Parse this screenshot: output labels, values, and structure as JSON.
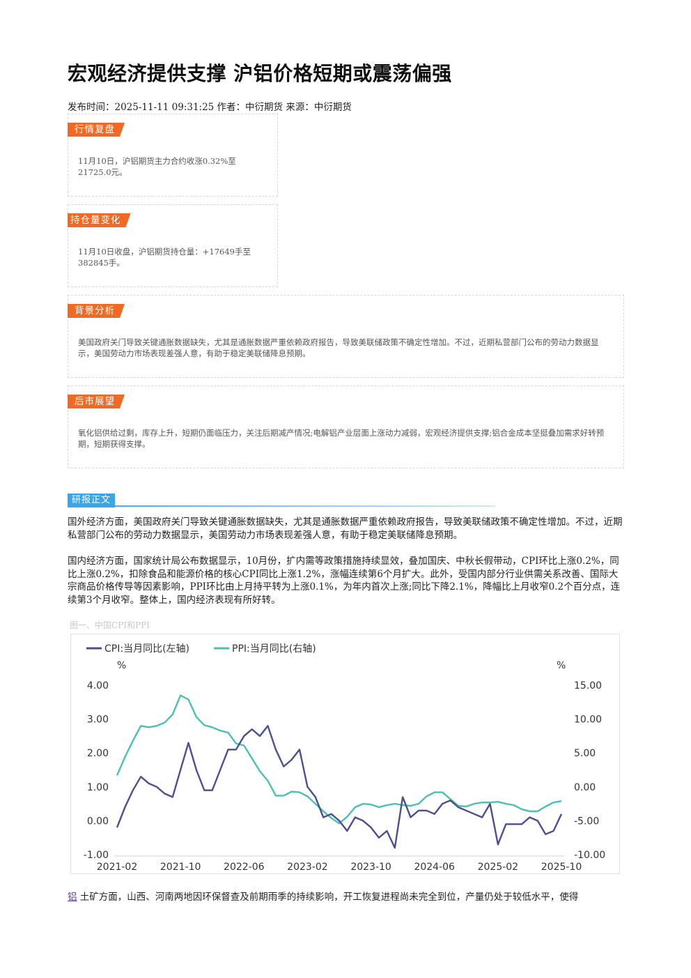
{
  "article": {
    "title": "宏观经济提供支撑 沪铝价格短期或震荡偏强",
    "meta": "发布时间：2025-11-11 09:31:25 作者：中衍期货 来源：中衍期货"
  },
  "cards": [
    {
      "tag": "行情复盘",
      "text": "11月10日，沪铝期货主力合约收涨0.32%至21725.0元。"
    },
    {
      "tag": "持仓量变化",
      "text": "11月10日收盘，沪铝期货持仓量：+17649手至382845手。"
    },
    {
      "tag": "背景分析",
      "text": "美国政府关门导致关键通胀数据缺失，尤其是通胀数据严重依赖政府报告，导致美联储政策不确定性增加。不过，近期私营部门公布的劳动力数据显示，美国劳动力市场表现差强人意，有助于稳定美联储降息预期。"
    },
    {
      "tag": "后市展望",
      "text": "氧化铝供给过剩，库存上升，短期仍面临压力，关注后期减产情况;电解铝产业层面上涨动力减弱，宏观经济提供支撑;铝合金成本坚挺叠加需求好转预期，短期获得支撑。"
    }
  ],
  "report": {
    "section_label": "研报正文",
    "para1": "国外经济方面，美国政府关门导致关键通胀数据缺失，尤其是通胀数据严重依赖政府报告，导致美联储政策不确定性增加。不过，近期私营部门公布的劳动力数据显示，美国劳动力市场表现差强人意，有助于稳定美联储降息预期。",
    "para2": "国内经济方面，国家统计局公布数据显示，10月份，扩内需等政策措施持续显效，叠加国庆、中秋长假带动，CPI环比上涨0.2%，同比上涨0.2%，扣除食品和能源价格的核心CPI同比上涨1.2%，涨幅连续第6个月扩大。此外，受国内部分行业供需关系改善、国际大宗商品价格传导等因素影响，PPI环比由上月持平转为上涨0.1%，为年内首次上涨;同比下降2.1%，降幅比上月收窄0.2个百分点，连续第3个月收窄。整体上，国内经济表现有所好转。",
    "figure_caption": "图一、中国CPI和PPI",
    "bottom_link": "铝",
    "bottom_text": " 土矿方面，山西、河南两地因环保督查及前期雨季的持续影响，开工恢复进程尚未完全到位，产量仍处于较低水平，使得"
  },
  "chart_data": {
    "type": "line",
    "title": "",
    "legend": [
      "CPI:当月同比(左轴)",
      "PPI:当月同比(右轴)"
    ],
    "legend_position": "top-left",
    "y_left_unit": "%",
    "y_right_unit": "%",
    "y_left_range": [
      -1.0,
      4.0
    ],
    "y_right_range": [
      -10.0,
      15.0
    ],
    "y_left_ticks": [
      "4.00",
      "3.00",
      "2.00",
      "1.00",
      "0.00",
      "-1.00"
    ],
    "y_right_ticks": [
      "15.00",
      "10.00",
      "5.00",
      "0.00",
      "-5.00",
      "-10.00"
    ],
    "x_ticks": [
      "2021-02",
      "2021-10",
      "2022-06",
      "2023-02",
      "2023-10",
      "2024-06",
      "2025-02",
      "2025-10"
    ],
    "grid": false,
    "colors": {
      "cpi": "#4b4f8f",
      "ppi": "#4dbfb0"
    },
    "months": [
      "2021-02",
      "2021-03",
      "2021-04",
      "2021-05",
      "2021-06",
      "2021-07",
      "2021-08",
      "2021-09",
      "2021-10",
      "2021-11",
      "2021-12",
      "2022-01",
      "2022-02",
      "2022-03",
      "2022-04",
      "2022-05",
      "2022-06",
      "2022-07",
      "2022-08",
      "2022-09",
      "2022-10",
      "2022-11",
      "2022-12",
      "2023-01",
      "2023-02",
      "2023-03",
      "2023-04",
      "2023-05",
      "2023-06",
      "2023-07",
      "2023-08",
      "2023-09",
      "2023-10",
      "2023-11",
      "2023-12",
      "2024-01",
      "2024-02",
      "2024-03",
      "2024-04",
      "2024-05",
      "2024-06",
      "2024-07",
      "2024-08",
      "2024-09",
      "2024-10",
      "2024-11",
      "2024-12",
      "2025-01",
      "2025-02",
      "2025-03",
      "2025-04",
      "2025-05",
      "2025-06",
      "2025-07",
      "2025-08",
      "2025-09",
      "2025-10"
    ],
    "series": [
      {
        "name": "CPI:当月同比(左轴)",
        "axis": "left",
        "values": [
          -0.2,
          0.4,
          0.9,
          1.3,
          1.1,
          1.0,
          0.8,
          0.7,
          1.5,
          2.3,
          1.5,
          0.9,
          0.9,
          1.5,
          2.1,
          2.1,
          2.5,
          2.7,
          2.5,
          2.8,
          2.1,
          1.6,
          1.8,
          2.1,
          1.0,
          0.7,
          0.1,
          0.2,
          0.0,
          -0.3,
          0.1,
          0.0,
          -0.2,
          -0.5,
          -0.3,
          -0.8,
          0.7,
          0.1,
          0.3,
          0.3,
          0.2,
          0.5,
          0.6,
          0.4,
          0.3,
          0.2,
          0.1,
          0.5,
          -0.7,
          -0.1,
          -0.1,
          -0.1,
          0.1,
          0.0,
          -0.4,
          -0.3,
          0.2
        ]
      },
      {
        "name": "PPI:当月同比(右轴)",
        "axis": "left_scale_right",
        "values": [
          1.7,
          4.4,
          6.8,
          9.0,
          8.8,
          9.0,
          9.5,
          10.7,
          13.5,
          12.9,
          10.3,
          9.1,
          8.8,
          8.3,
          8.0,
          6.4,
          6.1,
          4.2,
          2.3,
          0.9,
          -1.3,
          -1.3,
          -0.7,
          -0.8,
          -1.4,
          -2.5,
          -3.6,
          -4.6,
          -5.4,
          -4.4,
          -3.0,
          -2.5,
          -2.6,
          -3.0,
          -2.7,
          -2.5,
          -2.7,
          -2.8,
          -2.5,
          -1.4,
          -0.8,
          -0.8,
          -1.8,
          -2.8,
          -2.9,
          -2.5,
          -2.3,
          -2.3,
          -2.2,
          -2.5,
          -2.7,
          -3.3,
          -3.6,
          -3.6,
          -2.9,
          -2.3,
          -2.1
        ]
      }
    ]
  }
}
